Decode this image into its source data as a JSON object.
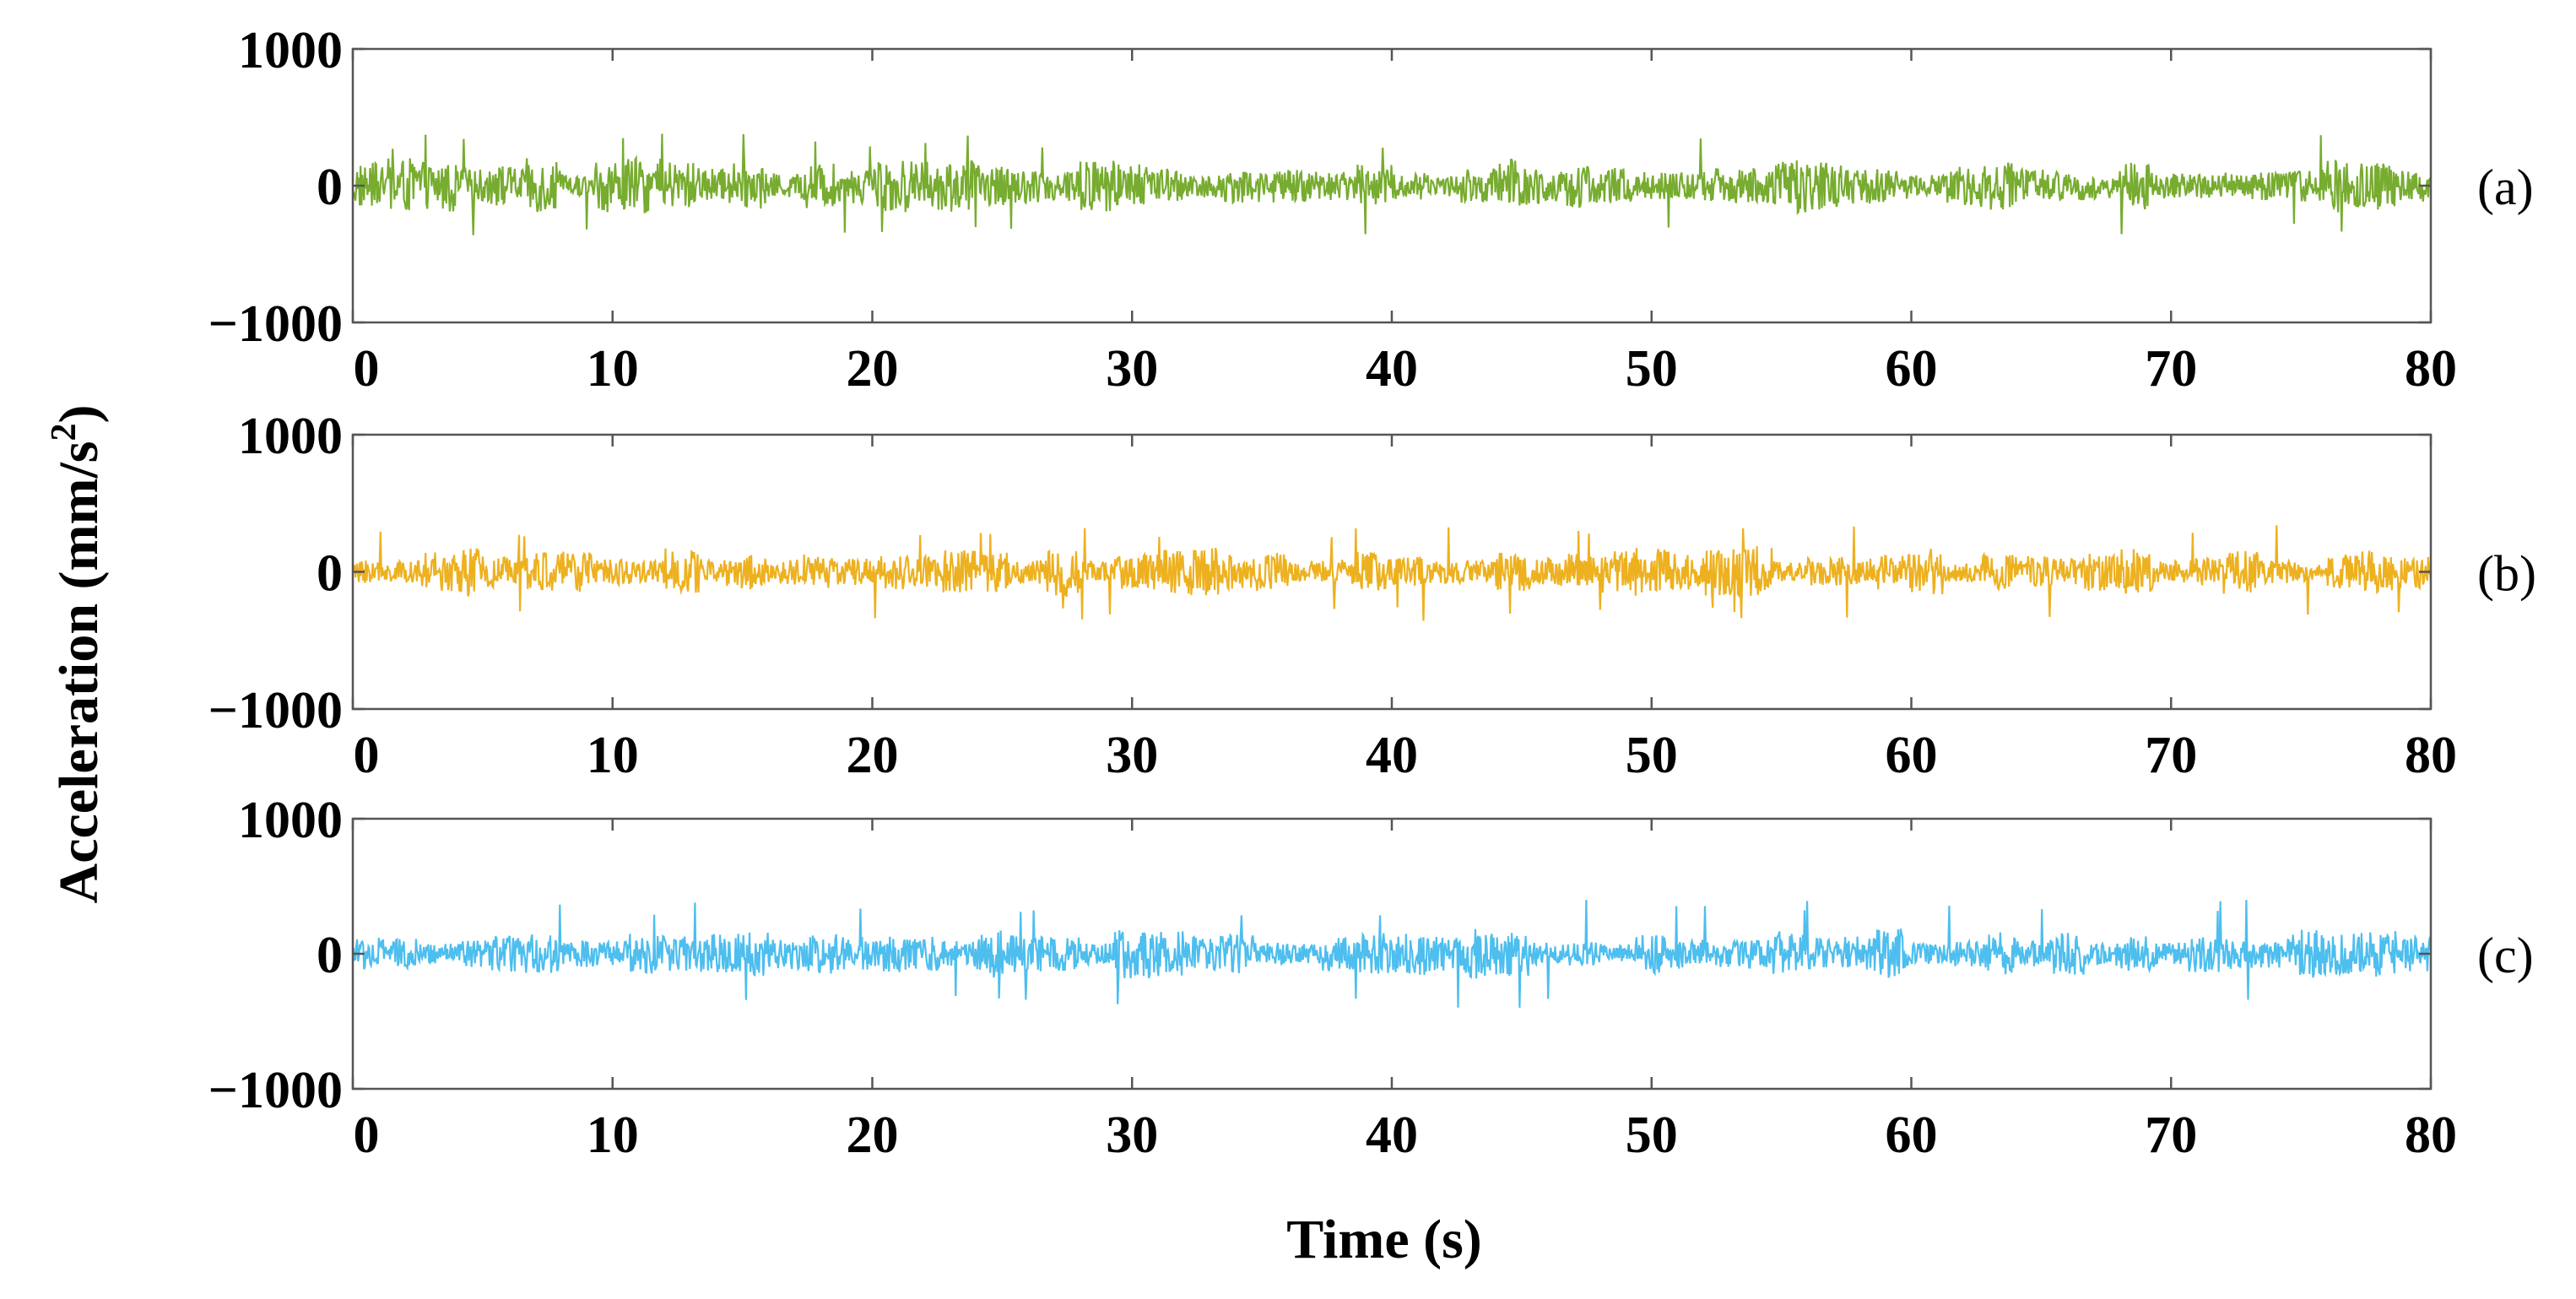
{
  "chart_data": [
    {
      "type": "line",
      "panel_label": "(a)",
      "color": "#77ac30",
      "xlim": [
        0,
        80
      ],
      "ylim": [
        -1000,
        1000
      ],
      "xticks": [
        "0",
        "10",
        "20",
        "30",
        "40",
        "50",
        "60",
        "70",
        "80"
      ],
      "yticks": [
        "1000",
        "0",
        "−1000"
      ],
      "signal": {
        "samples": 2400,
        "typical_amplitude": 140,
        "peak_amplitude": 380
      }
    },
    {
      "type": "line",
      "panel_label": "(b)",
      "color": "#edb120",
      "xlim": [
        0,
        80
      ],
      "ylim": [
        -1000,
        1000
      ],
      "xticks": [
        "0",
        "10",
        "20",
        "30",
        "40",
        "50",
        "60",
        "70",
        "80"
      ],
      "yticks": [
        "1000",
        "0",
        "−1000"
      ],
      "signal": {
        "samples": 2400,
        "typical_amplitude": 130,
        "peak_amplitude": 360
      }
    },
    {
      "type": "line",
      "panel_label": "(c)",
      "color": "#4dbeee",
      "xlim": [
        0,
        80
      ],
      "ylim": [
        -1000,
        1000
      ],
      "xticks": [
        "0",
        "10",
        "20",
        "30",
        "40",
        "50",
        "60",
        "70",
        "80"
      ],
      "yticks": [
        "1000",
        "0",
        "−1000"
      ],
      "signal": {
        "samples": 2400,
        "typical_amplitude": 130,
        "peak_amplitude": 400
      }
    }
  ],
  "labels": {
    "xlabel": "Time (s)",
    "ylabel_main": "Acceleration (mm/s",
    "ylabel_sup": "2",
    "ylabel_end": ")"
  }
}
